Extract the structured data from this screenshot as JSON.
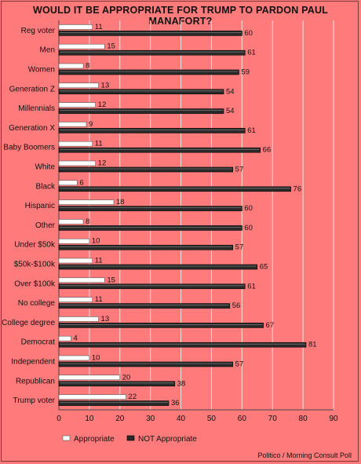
{
  "title": "WOULD IT BE APPROPRIATE FOR TRUMP TO PARDON PAUL MANAFORT?",
  "source": "Politico / Morning Consult Poll",
  "colors": {
    "background": "#ff7b7b",
    "appropriate": "#ffffff",
    "not_appropriate": "#2a2a2a",
    "grid": "#f2dede"
  },
  "chart_data": {
    "type": "bar",
    "orientation": "horizontal",
    "title": "WOULD IT BE APPROPRIATE FOR TRUMP TO PARDON PAUL MANAFORT?",
    "categories": [
      "Reg voter",
      "Men",
      "Women",
      "Generation Z",
      "Millennials",
      "Generation X",
      "Baby Boomers",
      "White",
      "Black",
      "Hispanic",
      "Other",
      "Under $50k",
      "$50k-$100k",
      "Over $100k",
      "No college",
      "College degree",
      "Democrat",
      "Independent",
      "Republican",
      "Trump voter"
    ],
    "series": [
      {
        "name": "Appropriate",
        "values": [
          11,
          15,
          8,
          13,
          12,
          9,
          11,
          12,
          6,
          18,
          8,
          10,
          11,
          15,
          11,
          13,
          4,
          10,
          20,
          22
        ]
      },
      {
        "name": "NOT Appropriate",
        "values": [
          60,
          61,
          59,
          54,
          54,
          61,
          66,
          57,
          76,
          60,
          60,
          57,
          65,
          61,
          56,
          67,
          81,
          57,
          38,
          36
        ]
      }
    ],
    "xlim": [
      0,
      90
    ],
    "xticks": [
      0,
      10,
      20,
      30,
      40,
      50,
      60,
      70,
      80,
      90
    ],
    "grid": true,
    "legend_position": "bottom"
  }
}
